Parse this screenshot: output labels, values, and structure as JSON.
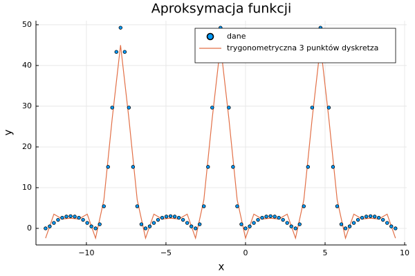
{
  "chart_data": {
    "type": "scatter-line",
    "title": "Aproksymacja funkcji",
    "x_label": "x",
    "y_label": "y",
    "xlim": [
      -13.17,
      10.13
    ],
    "ylim": [
      -4.07,
      51.0
    ],
    "xticks": [
      {
        "value": -10,
        "label": "−10"
      },
      {
        "value": -5,
        "label": "−5"
      },
      0,
      5,
      10
    ],
    "yticks": [
      0,
      10,
      20,
      30,
      40,
      50
    ],
    "grid": true,
    "legend": "top-right",
    "series": [
      {
        "name": "dane",
        "kind": "scatter",
        "color": "#009afa",
        "x": [
          -12.566,
          -12.305,
          -12.043,
          -11.781,
          -11.519,
          -11.257,
          -10.996,
          -10.734,
          -10.472,
          -10.21,
          -9.948,
          -9.687,
          -9.425,
          -9.163,
          -8.901,
          -8.639,
          -8.378,
          -8.116,
          -7.854,
          -7.592,
          -7.33,
          -7.069,
          -6.807,
          -6.545,
          -6.283,
          -6.021,
          -5.76,
          -5.498,
          -5.236,
          -4.974,
          -4.712,
          -4.451,
          -4.189,
          -3.927,
          -3.665,
          -3.403,
          -3.142,
          -2.88,
          -2.618,
          -2.356,
          -2.094,
          -1.833,
          -1.571,
          -1.309,
          -1.047,
          -0.785,
          -0.524,
          -0.262,
          0,
          0.262,
          0.524,
          0.785,
          1.047,
          1.309,
          1.571,
          1.833,
          2.094,
          2.356,
          2.618,
          2.88,
          3.142,
          3.403,
          3.665,
          3.927,
          4.189,
          4.451,
          4.712,
          4.974,
          5.236,
          5.498,
          5.76,
          6.021,
          6.283,
          6.545,
          6.807,
          7.069,
          7.33,
          7.592,
          7.854,
          8.116,
          8.378,
          8.639,
          8.901,
          9.163,
          9.425
        ],
        "values": [
          0,
          0.49,
          1.34,
          2.09,
          2.61,
          2.9,
          3.0,
          2.9,
          2.61,
          2.09,
          1.34,
          0.49,
          0,
          1.01,
          5.43,
          15.1,
          29.66,
          43.34,
          49.28,
          43.34,
          29.66,
          15.1,
          5.43,
          1.01,
          0,
          0.49,
          1.34,
          2.09,
          2.61,
          2.9,
          3.0,
          2.9,
          2.61,
          2.09,
          1.34,
          0.49,
          0,
          1.01,
          5.43,
          15.1,
          29.66,
          43.34,
          49.28,
          43.34,
          29.66,
          15.1,
          5.43,
          1.01,
          0,
          0.49,
          1.34,
          2.09,
          2.61,
          2.9,
          3.0,
          2.9,
          2.61,
          2.09,
          1.34,
          0.49,
          0,
          1.01,
          5.43,
          15.1,
          29.66,
          43.34,
          49.28,
          43.34,
          29.66,
          15.1,
          5.43,
          1.01,
          0,
          0.49,
          1.34,
          2.09,
          2.61,
          2.9,
          3.0,
          2.9,
          2.61,
          2.09,
          1.34,
          0.49,
          0
        ]
      },
      {
        "name": "trygonometryczna 3 punktów dyskretza",
        "kind": "line",
        "color": "#e26f46",
        "x": [
          -12.566,
          -12.043,
          -11.519,
          -10.996,
          -10.472,
          -9.948,
          -9.425,
          -8.901,
          -8.378,
          -7.854,
          -7.33,
          -6.807,
          -6.283,
          -5.76,
          -5.236,
          -4.712,
          -4.189,
          -3.665,
          -3.142,
          -2.618,
          -2.094,
          -1.571,
          -1.047,
          -0.524,
          0,
          0.524,
          1.047,
          1.571,
          2.094,
          2.618,
          3.142,
          3.665,
          4.189,
          4.712,
          5.236,
          5.76,
          6.283,
          6.807,
          7.33,
          7.854,
          8.378,
          8.901,
          9.425
        ],
        "values": [
          -2.4,
          3.5,
          2.3,
          2.5,
          2.3,
          3.5,
          -2.4,
          7.0,
          27.0,
          45.0,
          27.0,
          7.0,
          -2.4,
          3.5,
          2.3,
          2.5,
          2.3,
          3.5,
          -2.4,
          7.0,
          27.0,
          45.0,
          27.0,
          7.0,
          -2.4,
          3.5,
          2.3,
          2.5,
          2.3,
          3.5,
          -2.4,
          7.0,
          27.0,
          45.0,
          27.0,
          7.0,
          -2.4,
          3.5,
          2.3,
          2.5,
          2.3,
          3.5,
          -2.4
        ]
      }
    ]
  }
}
